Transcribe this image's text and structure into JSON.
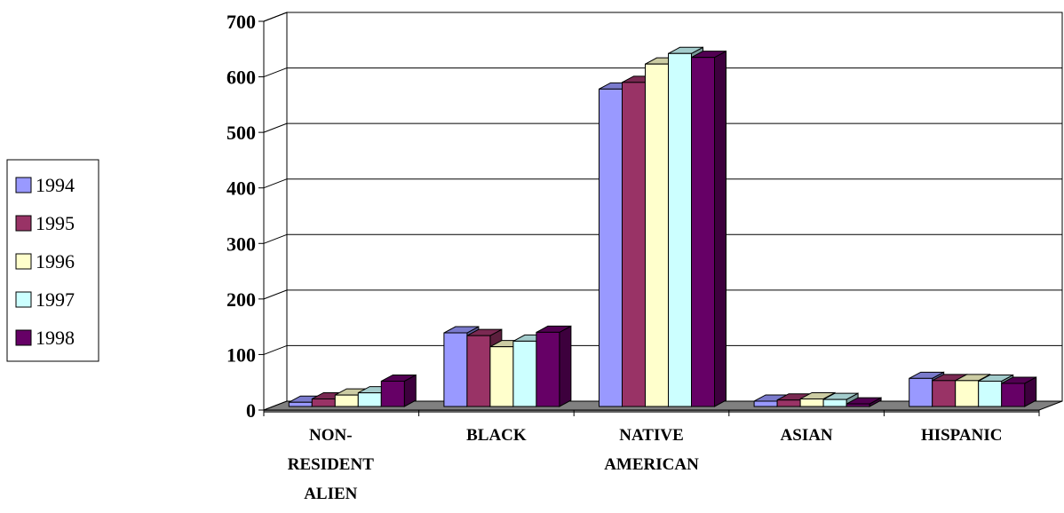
{
  "chart_data": {
    "type": "bar",
    "style": "3d-clustered-column",
    "title": "",
    "xlabel": "",
    "ylabel": "",
    "ylim": [
      0,
      700
    ],
    "yticks": [
      0,
      100,
      200,
      300,
      400,
      500,
      600,
      700
    ],
    "grid": true,
    "legend_position": "left",
    "categories": [
      [
        "NON-",
        "RESIDENT",
        "ALIEN"
      ],
      [
        "BLACK"
      ],
      [
        "NATIVE",
        "AMERICAN"
      ],
      [
        "ASIAN"
      ],
      [
        "HISPANIC"
      ]
    ],
    "series": [
      {
        "name": "1994",
        "color": "#9999FF",
        "values": [
          14,
          139,
          578,
          16,
          57
        ]
      },
      {
        "name": "1995",
        "color": "#993366",
        "values": [
          20,
          134,
          590,
          18,
          53
        ]
      },
      {
        "name": "1996",
        "color": "#FFFFCC",
        "values": [
          27,
          114,
          623,
          20,
          53
        ]
      },
      {
        "name": "1997",
        "color": "#CCFFFF",
        "values": [
          31,
          124,
          642,
          19,
          52
        ]
      },
      {
        "name": "1998",
        "color": "#660066",
        "values": [
          52,
          140,
          635,
          11,
          48
        ]
      }
    ]
  }
}
